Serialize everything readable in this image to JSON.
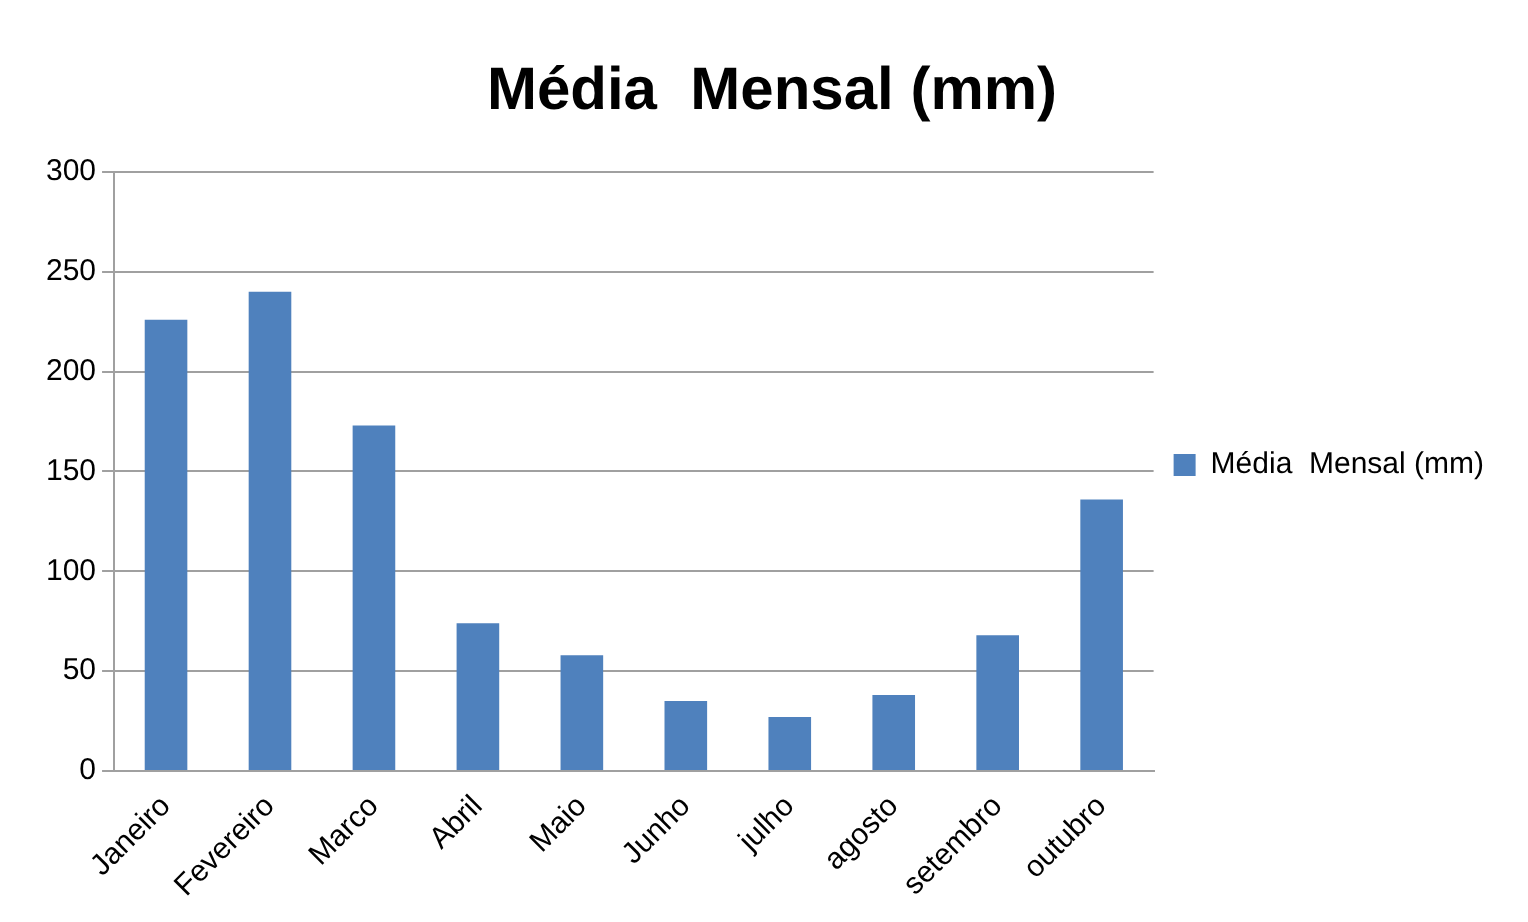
{
  "chart_data": {
    "type": "bar",
    "title": "Média  Mensal (mm)",
    "categories": [
      "Janeiro",
      "Fevereiro",
      "Marco",
      "Abril",
      "Maio",
      "Junho",
      "julho",
      "agosto",
      "setembro",
      "outubro"
    ],
    "series": [
      {
        "name": "Média  Mensal (mm)",
        "color": "#4f81bd",
        "values": [
          226,
          240,
          173,
          74,
          58,
          35,
          27,
          38,
          68,
          136
        ]
      }
    ],
    "ylim": [
      0,
      300
    ],
    "yticks": [
      0,
      50,
      100,
      150,
      200,
      250,
      300
    ],
    "grid": "y",
    "legend": "right"
  }
}
